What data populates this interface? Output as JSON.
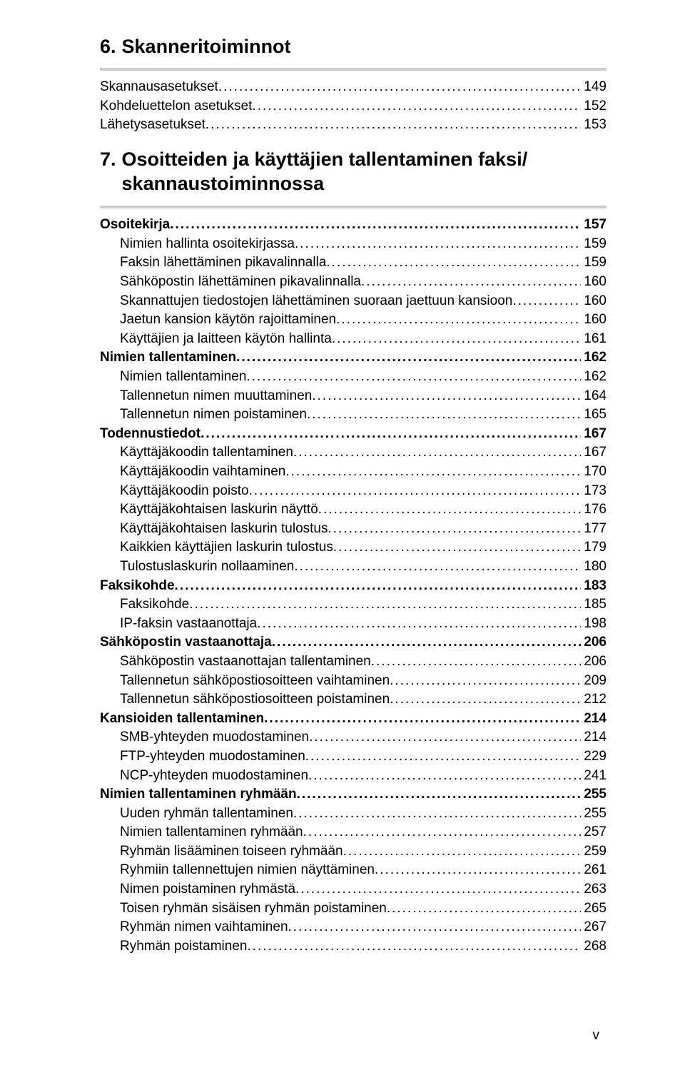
{
  "colors": {
    "rule": "#cbccce",
    "text": "#000000",
    "background": "#ffffff"
  },
  "fonts": {
    "chapter_size": 27,
    "line_size": 19,
    "line_height": 26.6,
    "page_num_size": 19
  },
  "chapters": [
    {
      "num": "6.",
      "title": "Skanneritoiminnot"
    },
    {
      "num": "7.",
      "title": "Osoitteiden ja käyttäjien tallentaminen faksi/ skannaustoiminnossa"
    }
  ],
  "sections": [
    {
      "chapter": 0,
      "lines": [
        {
          "label": "Skannausasetukset",
          "page": "149",
          "indent": 0,
          "bold": false
        },
        {
          "label": "Kohdeluettelon asetukset",
          "page": "152",
          "indent": 0,
          "bold": false
        },
        {
          "label": "Lähetysasetukset",
          "page": "153",
          "indent": 0,
          "bold": false
        }
      ]
    },
    {
      "chapter": 1,
      "lines": [
        {
          "label": "Osoitekirja",
          "page": "157",
          "indent": 0,
          "bold": true
        },
        {
          "label": "Nimien hallinta osoitekirjassa",
          "page": "159",
          "indent": 1,
          "bold": false
        },
        {
          "label": "Faksin lähettäminen pikavalinnalla",
          "page": "159",
          "indent": 1,
          "bold": false
        },
        {
          "label": "Sähköpostin lähettäminen pikavalinnalla",
          "page": "160",
          "indent": 1,
          "bold": false
        },
        {
          "label": "Skannattujen tiedostojen lähettäminen suoraan jaettuun kansioon",
          "page": "160",
          "indent": 1,
          "bold": false
        },
        {
          "label": "Jaetun kansion käytön rajoittaminen",
          "page": "160",
          "indent": 1,
          "bold": false
        },
        {
          "label": "Käyttäjien ja laitteen käytön hallinta",
          "page": "161",
          "indent": 1,
          "bold": false
        },
        {
          "label": "Nimien tallentaminen",
          "page": "162",
          "indent": 0,
          "bold": true
        },
        {
          "label": "Nimien tallentaminen",
          "page": "162",
          "indent": 1,
          "bold": false
        },
        {
          "label": "Tallennetun nimen muuttaminen",
          "page": "164",
          "indent": 1,
          "bold": false
        },
        {
          "label": "Tallennetun nimen poistaminen",
          "page": "165",
          "indent": 1,
          "bold": false
        },
        {
          "label": "Todennustiedot",
          "page": "167",
          "indent": 0,
          "bold": true
        },
        {
          "label": "Käyttäjäkoodin tallentaminen",
          "page": "167",
          "indent": 1,
          "bold": false
        },
        {
          "label": "Käyttäjäkoodin vaihtaminen",
          "page": "170",
          "indent": 1,
          "bold": false
        },
        {
          "label": "Käyttäjäkoodin poisto",
          "page": "173",
          "indent": 1,
          "bold": false
        },
        {
          "label": "Käyttäjäkohtaisen laskurin näyttö",
          "page": "176",
          "indent": 1,
          "bold": false
        },
        {
          "label": "Käyttäjäkohtaisen laskurin tulostus",
          "page": "177",
          "indent": 1,
          "bold": false
        },
        {
          "label": "Kaikkien käyttäjien laskurin tulostus",
          "page": "179",
          "indent": 1,
          "bold": false
        },
        {
          "label": "Tulostuslaskurin nollaaminen",
          "page": "180",
          "indent": 1,
          "bold": false
        },
        {
          "label": "Faksikohde",
          "page": "183",
          "indent": 0,
          "bold": true
        },
        {
          "label": "Faksikohde",
          "page": "185",
          "indent": 1,
          "bold": false
        },
        {
          "label": "IP-faksin vastaanottaja",
          "page": "198",
          "indent": 1,
          "bold": false
        },
        {
          "label": "Sähköpostin vastaanottaja",
          "page": "206",
          "indent": 0,
          "bold": true
        },
        {
          "label": "Sähköpostin vastaanottajan tallentaminen",
          "page": "206",
          "indent": 1,
          "bold": false
        },
        {
          "label": "Tallennetun sähköpostiosoitteen vaihtaminen",
          "page": "209",
          "indent": 1,
          "bold": false
        },
        {
          "label": "Tallennetun sähköpostiosoitteen poistaminen",
          "page": "212",
          "indent": 1,
          "bold": false
        },
        {
          "label": "Kansioiden tallentaminen",
          "page": "214",
          "indent": 0,
          "bold": true
        },
        {
          "label": "SMB-yhteyden muodostaminen",
          "page": "214",
          "indent": 1,
          "bold": false
        },
        {
          "label": "FTP-yhteyden muodostaminen",
          "page": "229",
          "indent": 1,
          "bold": false
        },
        {
          "label": "NCP-yhteyden muodostaminen",
          "page": "241",
          "indent": 1,
          "bold": false
        },
        {
          "label": "Nimien tallentaminen ryhmään",
          "page": "255",
          "indent": 0,
          "bold": true
        },
        {
          "label": "Uuden ryhmän tallentaminen",
          "page": "255",
          "indent": 1,
          "bold": false
        },
        {
          "label": "Nimien tallentaminen ryhmään",
          "page": "257",
          "indent": 1,
          "bold": false
        },
        {
          "label": "Ryhmän lisääminen toiseen ryhmään",
          "page": "259",
          "indent": 1,
          "bold": false
        },
        {
          "label": "Ryhmiin tallennettujen nimien näyttäminen",
          "page": "261",
          "indent": 1,
          "bold": false
        },
        {
          "label": "Nimen poistaminen ryhmästä",
          "page": "263",
          "indent": 1,
          "bold": false
        },
        {
          "label": "Toisen ryhmän sisäisen ryhmän poistaminen",
          "page": "265",
          "indent": 1,
          "bold": false
        },
        {
          "label": "Ryhmän nimen vaihtaminen",
          "page": "267",
          "indent": 1,
          "bold": false
        },
        {
          "label": "Ryhmän poistaminen",
          "page": "268",
          "indent": 1,
          "bold": false
        }
      ]
    }
  ],
  "page_number": "v"
}
